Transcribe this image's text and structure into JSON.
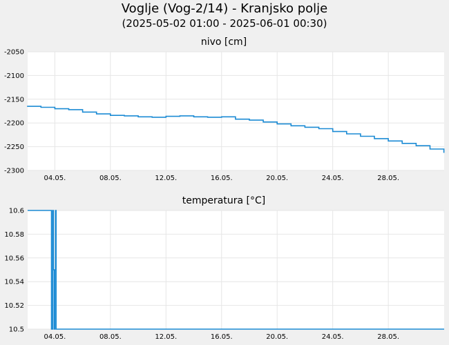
{
  "header": {
    "title": "Voglje (Vog-2/14) - Kranjsko polje",
    "subtitle": "(2025-05-02 01:00 - 2025-06-01 00:30)"
  },
  "colors": {
    "background": "#f0f0f0",
    "plot_area": "#ffffff",
    "series": "#1a8ad4",
    "grid": "#e6e6e6"
  },
  "chart_data": [
    {
      "type": "line",
      "title": "nivo [cm]",
      "xlabel": "",
      "ylabel": "",
      "x_range": [
        "2025-05-02 01:00",
        "2025-06-01 00:30"
      ],
      "x_ticks": [
        "04.05.",
        "08.05.",
        "12.05.",
        "16.05.",
        "20.05.",
        "24.05.",
        "28.05."
      ],
      "ylim": [
        -2300,
        -2050
      ],
      "y_ticks": [
        "-2050",
        "-2100",
        "-2150",
        "-2200",
        "-2250",
        "-2300"
      ],
      "grid": true,
      "series": [
        {
          "x": [
            "2025-05-02",
            "2025-05-03",
            "2025-05-04",
            "2025-05-05",
            "2025-05-06",
            "2025-05-07",
            "2025-05-08",
            "2025-05-09",
            "2025-05-10",
            "2025-05-11",
            "2025-05-12",
            "2025-05-13",
            "2025-05-14",
            "2025-05-15",
            "2025-05-16",
            "2025-05-17",
            "2025-05-18",
            "2025-05-19",
            "2025-05-20",
            "2025-05-21",
            "2025-05-22",
            "2025-05-23",
            "2025-05-24",
            "2025-05-25",
            "2025-05-26",
            "2025-05-27",
            "2025-05-28",
            "2025-05-29",
            "2025-05-30",
            "2025-05-31",
            "2025-06-01"
          ],
          "y": [
            -2165,
            -2167,
            -2170,
            -2172,
            -2177,
            -2181,
            -2184,
            -2185,
            -2187,
            -2188,
            -2186,
            -2185,
            -2187,
            -2188,
            -2187,
            -2192,
            -2194,
            -2198,
            -2202,
            -2206,
            -2209,
            -2212,
            -2218,
            -2223,
            -2228,
            -2233,
            -2238,
            -2243,
            -2248,
            -2255,
            -2263
          ]
        }
      ]
    },
    {
      "type": "line",
      "title": "temperatura [°C]",
      "xlabel": "",
      "ylabel": "",
      "x_range": [
        "2025-05-02 01:00",
        "2025-06-01 00:30"
      ],
      "x_ticks": [
        "04.05.",
        "08.05.",
        "12.05.",
        "16.05.",
        "20.05.",
        "24.05.",
        "28.05."
      ],
      "ylim": [
        10.5,
        10.6
      ],
      "y_ticks": [
        "10.6",
        "10.58",
        "10.56",
        "10.54",
        "10.52",
        "10.5"
      ],
      "grid": true,
      "series": [
        {
          "x": [
            "2025-05-02 01:00",
            "2025-05-03 18:00",
            "2025-05-03 18:10",
            "2025-05-03 20:00",
            "2025-05-03 20:10",
            "2025-05-03 21:30",
            "2025-05-03 21:40",
            "2025-05-03 22:30",
            "2025-05-03 22:40",
            "2025-05-04 00:00",
            "2025-05-04 00:10",
            "2025-05-04 01:00",
            "2025-05-04 01:10",
            "2025-05-04 02:00",
            "2025-05-04 02:10",
            "2025-06-01 00:30"
          ],
          "y": [
            10.6,
            10.6,
            10.5,
            10.5,
            10.6,
            10.6,
            10.55,
            10.55,
            10.5,
            10.5,
            10.55,
            10.55,
            10.6,
            10.6,
            10.5,
            10.5
          ]
        }
      ]
    }
  ]
}
